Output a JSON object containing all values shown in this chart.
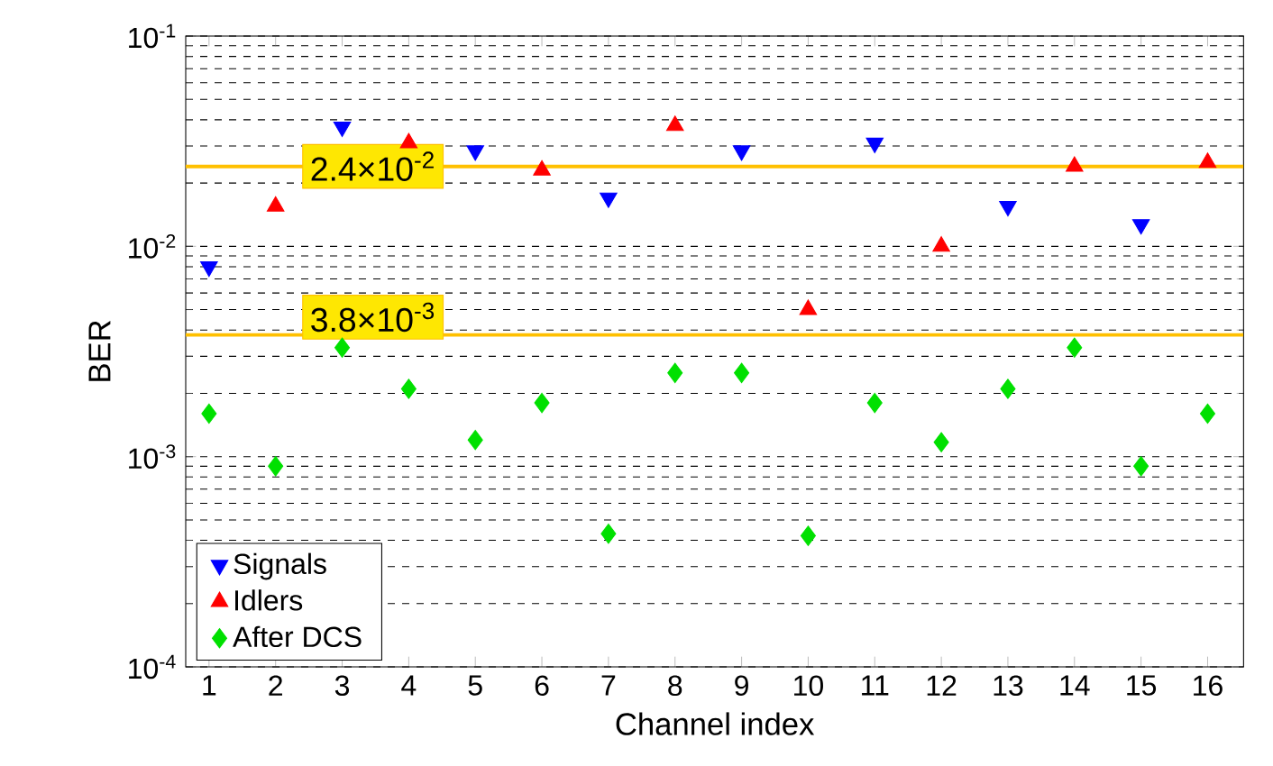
{
  "chart_data": {
    "type": "scatter",
    "xlabel": "Channel index",
    "ylabel": "BER",
    "categories": [
      "1",
      "2",
      "3",
      "4",
      "5",
      "6",
      "7",
      "8",
      "9",
      "10",
      "11",
      "12",
      "13",
      "14",
      "15",
      "16"
    ],
    "log": "y",
    "ylim": [
      0.0001,
      0.1
    ],
    "yticks": [
      {
        "value": 0.0001,
        "label": "10$^{-4}$"
      },
      {
        "value": 0.001,
        "label": "10$^{-3}$"
      },
      {
        "value": 0.01,
        "label": "10$^{-2}$"
      },
      {
        "value": 0.1,
        "label": "10$^{-1}$"
      }
    ],
    "grid": "y",
    "legend": "bottom left",
    "series": [
      {
        "name": "Signals",
        "color": "#0000ff",
        "marker": "triangle-down",
        "values": [
          0.008,
          null,
          0.037,
          null,
          0.0285,
          null,
          0.017,
          null,
          0.0285,
          null,
          0.031,
          null,
          0.0155,
          null,
          0.0127,
          null
        ]
      },
      {
        "name": "Idlers",
        "color": "#ff0000",
        "marker": "triangle",
        "values": [
          null,
          0.0155,
          null,
          0.031,
          null,
          0.023,
          null,
          0.0375,
          null,
          0.005,
          null,
          0.01,
          null,
          0.024,
          null,
          0.025
        ]
      },
      {
        "name": "After DCS",
        "color": "#00e000",
        "marker": "diamond",
        "values": [
          0.0016,
          0.0009,
          0.0033,
          0.0021,
          0.0012,
          0.0018,
          0.00043,
          0.0025,
          0.0025,
          0.00042,
          0.0018,
          0.00117,
          0.0021,
          0.0033,
          0.0009,
          0.0016
        ]
      }
    ],
    "ref_lines": [
      {
        "axis": "y",
        "value": 0.024,
        "label": "2.4×10$^{-2}$",
        "color": "#ffc000"
      },
      {
        "axis": "y",
        "value": 0.0038,
        "label": "3.8×10$^{-3}$",
        "color": "#ffc000"
      }
    ]
  }
}
